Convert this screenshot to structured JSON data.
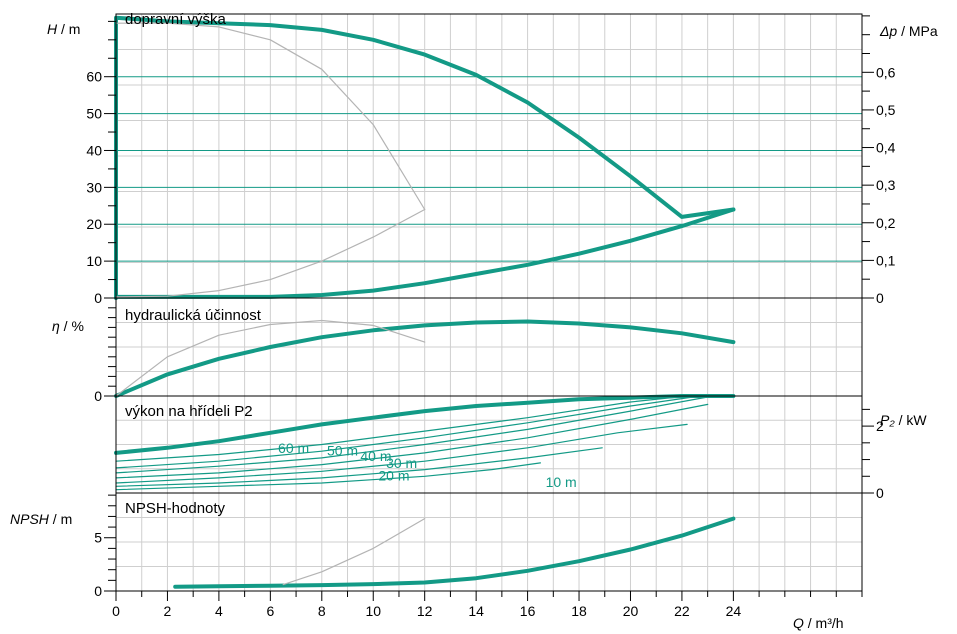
{
  "colors": {
    "accent": "#139a86",
    "grid": "#cfcfcf",
    "gray_curve": "#b4b4b4",
    "axis": "#000000"
  },
  "chart_data": {
    "type": "line",
    "x_axis": {
      "label_symbol": "Q",
      "label_unit": " / m³/h",
      "range": [
        0,
        29
      ],
      "ticks": [
        0,
        2,
        4,
        6,
        8,
        10,
        12,
        14,
        16,
        18,
        20,
        22,
        24
      ],
      "tick_labels": [
        "0",
        "2",
        "4",
        "6",
        "8",
        "10",
        "12",
        "14",
        "16",
        "18",
        "20",
        "22",
        "24"
      ]
    },
    "panels": [
      {
        "id": "head",
        "title": "dopravní výška",
        "y_label_symbol": "H",
        "y_label_unit": " / m",
        "y_range": [
          0,
          77
        ],
        "y_ticks": [
          0,
          10,
          20,
          30,
          40,
          50,
          60
        ],
        "y_tick_labels": [
          "0",
          "10",
          "20",
          "30",
          "40",
          "50",
          "60"
        ],
        "right_label_symbol": "Δp",
        "right_label_unit": " / MPa",
        "right_range": [
          0,
          0.755
        ],
        "right_ticks": [
          0,
          0.1,
          0.2,
          0.3,
          0.4,
          0.5,
          0.6
        ],
        "right_tick_labels": [
          "0",
          "0,1",
          "0,2",
          "0,3",
          "0,4",
          "0,5",
          "0,6"
        ],
        "series": [
          {
            "style": "accent",
            "x": [
              0,
              0,
              2,
              4,
              6,
              8,
              10,
              12,
              14,
              16,
              18,
              20,
              22,
              24
            ],
            "y": [
              0,
              76,
              75,
              74.5,
              74,
              72.7,
              70,
              66,
              60.5,
              53,
              43.5,
              33,
              22,
              24
            ]
          },
          {
            "style": "accent",
            "x": [
              24,
              22,
              20,
              18,
              16,
              14,
              12,
              10,
              8,
              6,
              4,
              2,
              0
            ],
            "y": [
              24,
              19.5,
              15.5,
              12,
              9,
              6.5,
              4,
              2,
              0.8,
              0.3,
              0.3,
              0.3,
              0.3
            ]
          },
          {
            "style": "gray",
            "x": [
              0,
              2,
              4,
              6,
              8,
              10,
              12
            ],
            "y": [
              74.5,
              74.5,
              73.5,
              70,
              62,
              47,
              24
            ]
          },
          {
            "style": "gray",
            "x": [
              0,
              2,
              4,
              6,
              8,
              10,
              12
            ],
            "y": [
              0.3,
              0.5,
              2,
              5,
              10,
              16.5,
              24
            ]
          }
        ]
      },
      {
        "id": "efficiency",
        "title": "hydraulická účinnost",
        "y_label_symbol": "η",
        "y_label_unit": " / %",
        "y_range": [
          0,
          100
        ],
        "y_ticks": [
          0
        ],
        "y_tick_labels": [
          "0"
        ],
        "series": [
          {
            "style": "accent",
            "x": [
              0,
              2,
              4,
              6,
              8,
              10,
              12,
              14,
              16,
              18,
              20,
              22,
              24
            ],
            "y": [
              0,
              22,
              38,
              50,
              60,
              67,
              72,
              75,
              76,
              74,
              70,
              64,
              55
            ]
          },
          {
            "style": "gray",
            "x": [
              0,
              2,
              4,
              6,
              8,
              10,
              12
            ],
            "y": [
              0,
              40,
              62,
              73,
              77,
              72,
              55
            ]
          }
        ]
      },
      {
        "id": "power",
        "title": "výkon na hřídeli P2",
        "right_label_symbol": "P₂",
        "right_label_unit": " / kW",
        "right_range": [
          0,
          2.9
        ],
        "right_ticks": [
          0,
          2
        ],
        "right_tick_labels": [
          "0",
          "2"
        ],
        "series": [
          {
            "style": "accent",
            "x": [
              0,
              2,
              4,
              6,
              8,
              10,
              12,
              14,
              16,
              18,
              20,
              22,
              24
            ],
            "y": [
              1.2,
              1.35,
              1.55,
              1.8,
              2.05,
              2.25,
              2.45,
              2.6,
              2.7,
              2.8,
              2.85,
              2.9,
              2.9
            ]
          },
          {
            "style": "thin",
            "x": [
              0,
              4,
              8,
              12,
              16,
              20,
              22.2
            ],
            "y": [
              0.95,
              1.15,
              1.45,
              1.85,
              2.25,
              2.72,
              2.9
            ]
          },
          {
            "style": "thin",
            "x": [
              0,
              4,
              8,
              12,
              16,
              20,
              22.7
            ],
            "y": [
              0.75,
              0.95,
              1.25,
              1.65,
              2.1,
              2.6,
              2.9
            ]
          },
          {
            "style": "thin",
            "x": [
              0,
              4,
              8,
              12,
              16,
              20,
              23
            ],
            "y": [
              0.6,
              0.8,
              1.05,
              1.45,
              1.9,
              2.45,
              2.87
            ]
          },
          {
            "style": "thin",
            "x": [
              0,
              4,
              8,
              12,
              16,
              20,
              23
            ],
            "y": [
              0.45,
              0.6,
              0.85,
              1.2,
              1.65,
              2.2,
              2.65
            ]
          },
          {
            "style": "thin",
            "x": [
              0,
              4,
              8,
              12,
              16,
              19.5,
              22.2
            ],
            "y": [
              0.3,
              0.45,
              0.65,
              0.95,
              1.35,
              1.8,
              2.05
            ]
          },
          {
            "style": "thin",
            "x": [
              0,
              4,
              8,
              12,
              16,
              18.9
            ],
            "y": [
              0.2,
              0.3,
              0.45,
              0.7,
              1.05,
              1.35
            ]
          },
          {
            "style": "thin",
            "x": [
              0,
              4,
              8,
              12,
              14.6,
              16.5
            ],
            "y": [
              0.1,
              0.2,
              0.3,
              0.5,
              0.7,
              0.9
            ]
          }
        ],
        "curve_labels": [
          {
            "text": "60 m",
            "x": 6.3,
            "y": 1.2
          },
          {
            "text": "50 m",
            "x": 8.2,
            "y": 1.12
          },
          {
            "text": "40 m",
            "x": 9.5,
            "y": 0.95
          },
          {
            "text": "30 m",
            "x": 10.5,
            "y": 0.75
          },
          {
            "text": "20 m",
            "x": 10.2,
            "y": 0.38
          },
          {
            "text": "10 m",
            "x": 16.7,
            "y": 0.18
          }
        ]
      },
      {
        "id": "npsh",
        "title": "NPSH-hodnoty",
        "y_label_symbol": "NPSH",
        "y_label_unit": " / m",
        "y_range": [
          0,
          9.2
        ],
        "y_ticks": [
          0,
          5
        ],
        "y_tick_labels": [
          "0",
          "5"
        ],
        "series": [
          {
            "style": "accent",
            "x": [
              2.3,
              4,
              6,
              8,
              10,
              12,
              14,
              16,
              18,
              20,
              22,
              24
            ],
            "y": [
              0.4,
              0.45,
              0.5,
              0.55,
              0.65,
              0.8,
              1.2,
              1.9,
              2.8,
              3.9,
              5.2,
              6.8
            ]
          },
          {
            "style": "gray",
            "x": [
              6.5,
              8,
              10,
              12
            ],
            "y": [
              0.6,
              1.8,
              4,
              6.8
            ]
          }
        ]
      }
    ]
  }
}
